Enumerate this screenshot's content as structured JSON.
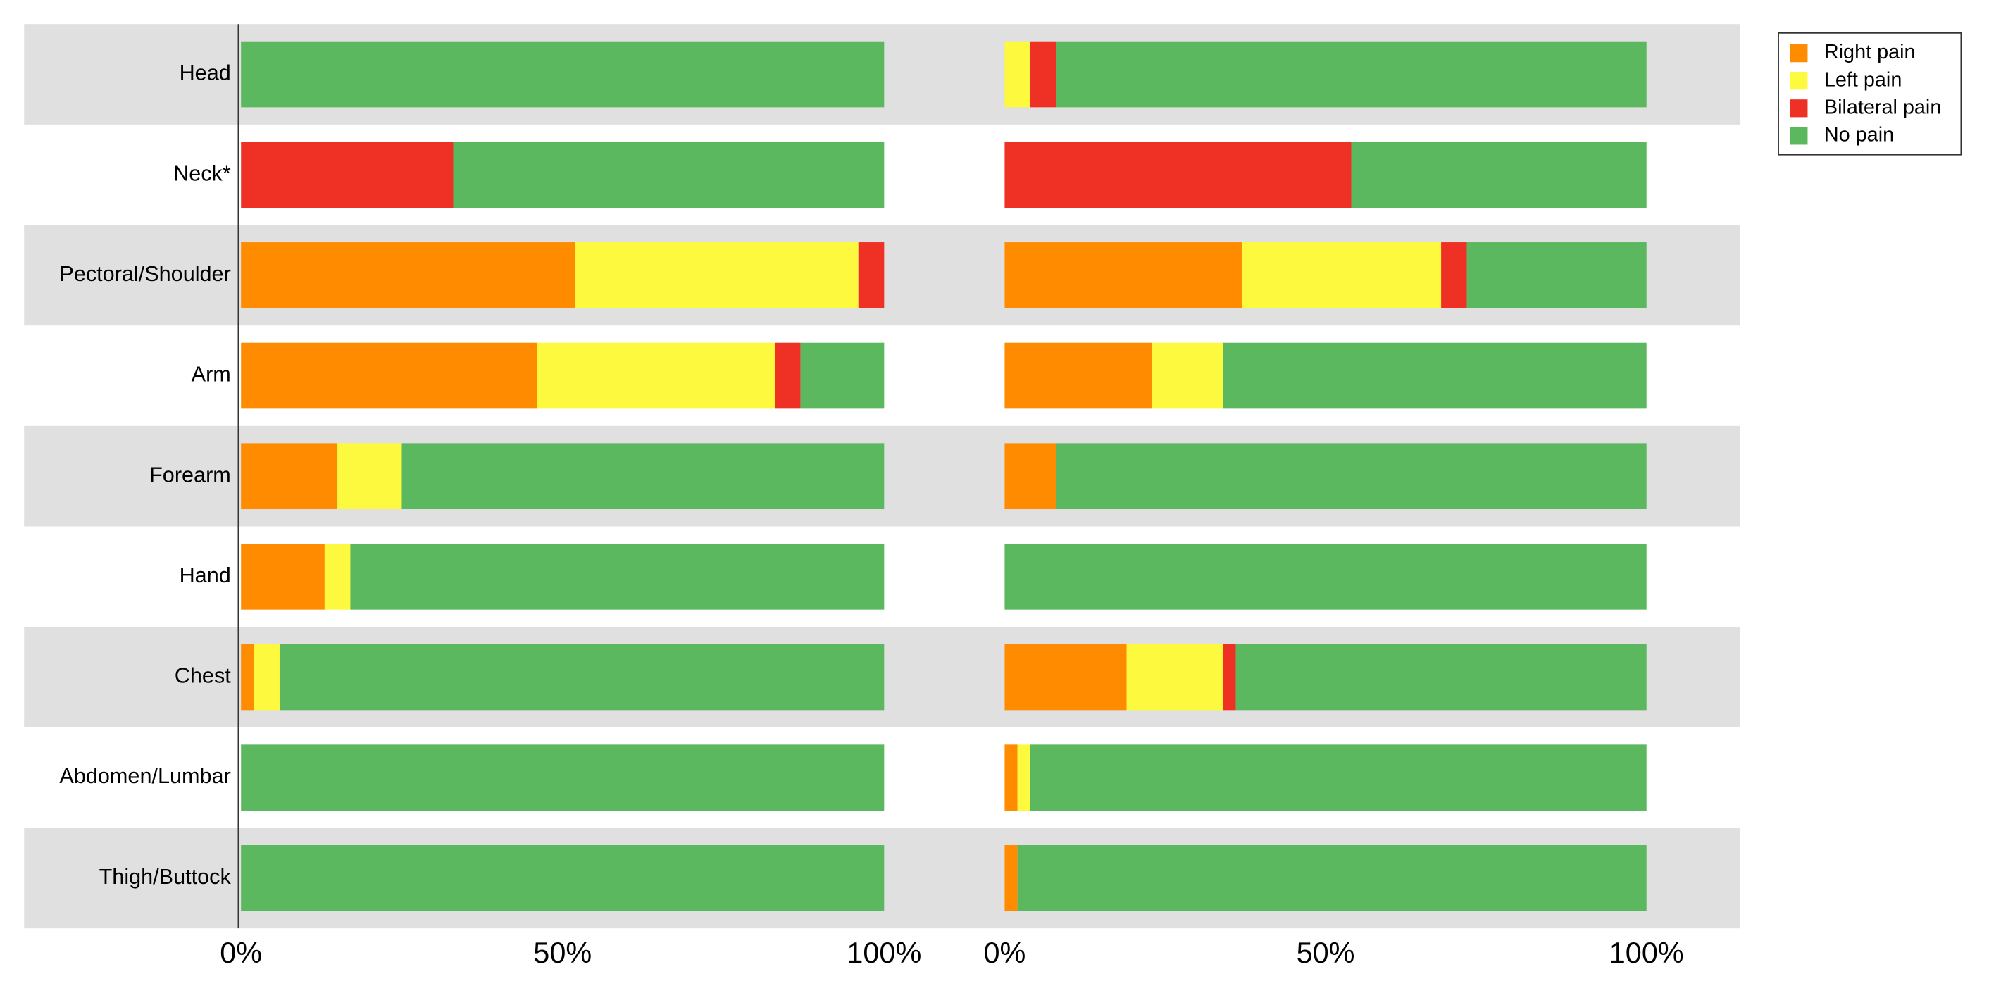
{
  "chart_data": {
    "type": "bar",
    "orientation": "horizontal",
    "stacked": true,
    "legend": "upper right",
    "categories": [
      "Head",
      "Neck*",
      "Pectoral/Shoulder",
      "Arm",
      "Forearm",
      "Hand",
      "Chest",
      "Abdomen/Lumbar",
      "Thigh/Buttock"
    ],
    "series": [
      {
        "name": "Right pain",
        "color": "#ff8c00"
      },
      {
        "name": "Left pain",
        "color": "#fcf93e"
      },
      {
        "name": "Bilateral pain",
        "color": "#ee3124"
      },
      {
        "name": "No pain",
        "color": "#5cb85f"
      }
    ],
    "panels": [
      {
        "xlim": [
          0,
          100
        ],
        "xticks": [
          {
            "value": 0,
            "label": "0%"
          },
          {
            "value": 50,
            "label": "50%"
          },
          {
            "value": 100,
            "label": "100%"
          }
        ],
        "series": [
          {
            "values": [
              0,
              0,
              52,
              46,
              15,
              13,
              2,
              0,
              0
            ]
          },
          {
            "values": [
              0,
              0,
              44,
              37,
              10,
              4,
              4,
              0,
              0
            ]
          },
          {
            "values": [
              0,
              33,
              4,
              4,
              0,
              0,
              0,
              0,
              0
            ]
          },
          {
            "values": [
              100,
              67,
              0,
              13,
              75,
              83,
              94,
              100,
              100
            ]
          }
        ]
      },
      {
        "xlim": [
          0,
          100
        ],
        "xticks": [
          {
            "value": 0,
            "label": "0%"
          },
          {
            "value": 50,
            "label": "50%"
          },
          {
            "value": 100,
            "label": "100%"
          }
        ],
        "series": [
          {
            "values": [
              0,
              0,
              37,
              23,
              8,
              0,
              19,
              2,
              2
            ]
          },
          {
            "values": [
              4,
              0,
              31,
              11,
              0,
              0,
              15,
              2,
              0
            ]
          },
          {
            "values": [
              4,
              54,
              4,
              0,
              0,
              0,
              2,
              0,
              0
            ]
          },
          {
            "values": [
              92,
              46,
              28,
              66,
              92,
              100,
              64,
              96,
              98
            ]
          }
        ]
      }
    ]
  }
}
